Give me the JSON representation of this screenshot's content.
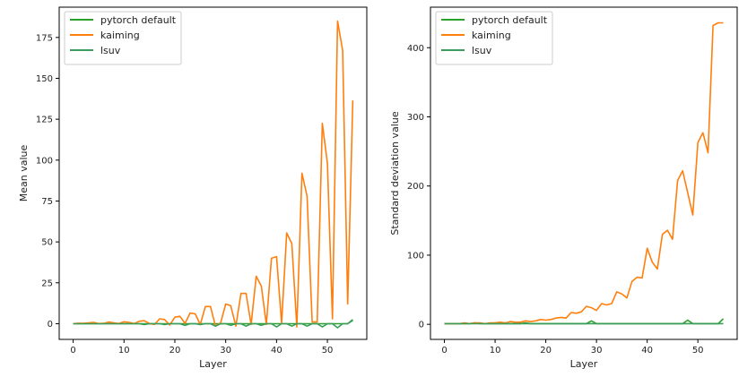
{
  "chart_data": [
    {
      "type": "line",
      "xlabel": "Layer",
      "ylabel": "Mean value",
      "xlim": [
        -2.75,
        57.75
      ],
      "ylim": [
        -9.6,
        193.5
      ],
      "xticks": [
        0,
        10,
        20,
        30,
        40,
        50
      ],
      "yticks": [
        0,
        25,
        50,
        75,
        100,
        125,
        150,
        175
      ],
      "grid": false,
      "legend": "top-left",
      "x": [
        0,
        1,
        2,
        3,
        4,
        5,
        6,
        7,
        8,
        9,
        10,
        11,
        12,
        13,
        14,
        15,
        16,
        17,
        18,
        19,
        20,
        21,
        22,
        23,
        24,
        25,
        26,
        27,
        28,
        29,
        30,
        31,
        32,
        33,
        34,
        35,
        36,
        37,
        38,
        39,
        40,
        41,
        42,
        43,
        44,
        45,
        46,
        47,
        48,
        49,
        50,
        51,
        52,
        53,
        54,
        55
      ],
      "series": [
        {
          "name": "pytorch default",
          "color": "#2ca02c",
          "values": [
            0,
            0,
            0,
            0,
            0,
            0,
            0,
            0,
            0,
            0,
            0,
            0,
            0,
            0,
            0,
            0,
            0,
            0,
            0,
            0,
            0,
            0,
            0,
            0,
            0,
            0,
            0,
            0,
            0,
            0,
            0,
            0,
            0,
            0,
            0,
            0,
            0,
            0,
            0,
            0,
            0,
            0,
            0,
            0,
            0,
            0,
            0,
            0,
            0,
            0,
            0,
            0,
            0,
            0,
            0,
            2.5
          ]
        },
        {
          "name": "kaiming",
          "color": "#ff7f0e",
          "values": [
            0,
            0.3,
            0.2,
            0.5,
            0.8,
            0.1,
            0.2,
            1.0,
            0.5,
            0.1,
            1.2,
            0.8,
            0.1,
            1.5,
            1.8,
            0.1,
            -0.5,
            3.0,
            2.5,
            -0.8,
            4.0,
            4.5,
            0.2,
            6.5,
            6.0,
            -0.5,
            10.5,
            10.5,
            -1.5,
            0.5,
            12.0,
            11.0,
            -1.5,
            18.5,
            18.5,
            -0.5,
            29.0,
            23.0,
            -0.5,
            40.0,
            41.0,
            0.2,
            55.5,
            49.0,
            -2.0,
            92.0,
            78.0,
            1.0,
            1.0,
            122.5,
            98.0,
            3.0,
            185.0,
            167.0,
            12.0,
            136.5
          ]
        },
        {
          "name": "lsuv",
          "color": "#3a9e5a",
          "values": [
            0,
            0,
            0,
            0,
            0,
            0,
            0,
            0,
            0,
            0,
            0,
            0,
            0,
            0,
            -0.5,
            0,
            0,
            0,
            -0.5,
            0,
            0,
            0,
            -1.0,
            0,
            0,
            -0.5,
            0,
            0,
            -1.5,
            0,
            0,
            -1.0,
            0,
            0,
            -1.5,
            0,
            0,
            -1.0,
            0,
            0,
            -2.0,
            0,
            0,
            -1.5,
            0,
            0,
            -1.5,
            0,
            0,
            -2.0,
            0,
            0,
            -2.5,
            0,
            0,
            2.0
          ]
        }
      ]
    },
    {
      "type": "line",
      "xlabel": "Layer",
      "ylabel": "Standard deviation value",
      "xlim": [
        -2.75,
        57.75
      ],
      "ylim": [
        -21.8,
        458.6
      ],
      "xticks": [
        0,
        10,
        20,
        30,
        40,
        50
      ],
      "yticks": [
        0,
        100,
        200,
        300,
        400
      ],
      "grid": false,
      "legend": "top-left",
      "x": [
        0,
        1,
        2,
        3,
        4,
        5,
        6,
        7,
        8,
        9,
        10,
        11,
        12,
        13,
        14,
        15,
        16,
        17,
        18,
        19,
        20,
        21,
        22,
        23,
        24,
        25,
        26,
        27,
        28,
        29,
        30,
        31,
        32,
        33,
        34,
        35,
        36,
        37,
        38,
        39,
        40,
        41,
        42,
        43,
        44,
        45,
        46,
        47,
        48,
        49,
        50,
        51,
        52,
        53,
        54,
        55
      ],
      "series": [
        {
          "name": "pytorch default",
          "color": "#2ca02c",
          "values": [
            1,
            1,
            1,
            1,
            1,
            1,
            2,
            1,
            1,
            1,
            1,
            1,
            1,
            1,
            1,
            1,
            2,
            1,
            1,
            1,
            1,
            1,
            1,
            1,
            1,
            1,
            1,
            1,
            1,
            5,
            1,
            1,
            1,
            1,
            1,
            1,
            1,
            1,
            1,
            1,
            1,
            1,
            1,
            1,
            1,
            1,
            1,
            1,
            6,
            1,
            1,
            1,
            1,
            1,
            1,
            8
          ]
        },
        {
          "name": "kaiming",
          "color": "#ff7f0e",
          "values": [
            1,
            1,
            1,
            1,
            2,
            1,
            2,
            2,
            1,
            2,
            2,
            3,
            2,
            4,
            3,
            3,
            5,
            4,
            5,
            7,
            6,
            7,
            9,
            10,
            9,
            17,
            16,
            18,
            26,
            24,
            20,
            30,
            28,
            30,
            47,
            44,
            38,
            62,
            68,
            67,
            110,
            90,
            80,
            130,
            136,
            123,
            208,
            222,
            190,
            158,
            263,
            277,
            248,
            432,
            436,
            436
          ]
        },
        {
          "name": "lsuv",
          "color": "#3a9e5a",
          "values": [
            1,
            1,
            1,
            1,
            1,
            1,
            1,
            1,
            1,
            1,
            1,
            1,
            1,
            1,
            1,
            1,
            1,
            1,
            1,
            1,
            1,
            1,
            1,
            1,
            1,
            1,
            1,
            1,
            1,
            1,
            1,
            1,
            1,
            1,
            1,
            1,
            1,
            1,
            1,
            1,
            1,
            1,
            1,
            1,
            1,
            1,
            1,
            1,
            1,
            1,
            1,
            1,
            1,
            1,
            1,
            1
          ]
        }
      ]
    }
  ]
}
